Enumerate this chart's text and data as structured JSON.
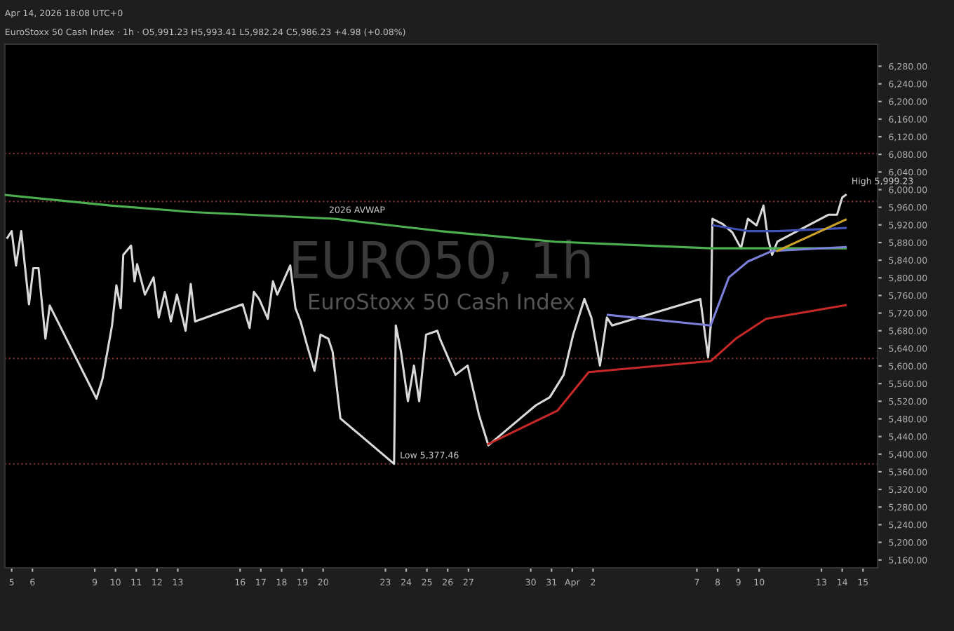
{
  "chart_data": {
    "type": "line",
    "title": "EURO50, 1h",
    "subtitle": "EuroStoxx 50 Cash Index",
    "annotations": [
      "Apr 14, 2026 18:08 UTC+0",
      "EuroStoxx 50 Cash Index · 1h · O5,991.23 H5,993.41 L5,982.24 C5,986.23 +4.98 (+0.08%)",
      {
        "text": "2026 AVWAP",
        "x": "2026-03-20T00:00",
        "y": 5934
      },
      {
        "text": "High 5,999.23",
        "x": "2026-04-14T04:00",
        "y": 5999.23
      },
      {
        "text": "Low 5,377.46",
        "x": "2026-03-23T10:00",
        "y": 5377.46
      }
    ],
    "series": [
      {
        "color": "#d9d9d9",
        "x": [
          "2026-03-04T19:00",
          "2026-03-05T00:00",
          "2026-03-05T05:00",
          "2026-03-05T11:00",
          "2026-03-05T20:00",
          "2026-03-06T01:00",
          "2026-03-06T07:00",
          "2026-03-06T15:00",
          "2026-03-06T20:00",
          "2026-03-09T02:00",
          "2026-03-09T09:00",
          "2026-03-09T20:00",
          "2026-03-10T01:00",
          "2026-03-10T06:00",
          "2026-03-10T09:00",
          "2026-03-10T18:00",
          "2026-03-10T22:00",
          "2026-03-11T01:00",
          "2026-03-11T10:00",
          "2026-03-11T20:00",
          "2026-03-12T02:00",
          "2026-03-12T09:00",
          "2026-03-12T16:00",
          "2026-03-12T23:00",
          "2026-03-13T09:00",
          "2026-03-13T15:00",
          "2026-03-13T20:00",
          "2026-03-16T03:00",
          "2026-03-16T11:00",
          "2026-03-16T16:00",
          "2026-03-16T22:00",
          "2026-03-17T08:00",
          "2026-03-17T14:00",
          "2026-03-17T19:00",
          "2026-03-18T10:00",
          "2026-03-18T16:00",
          "2026-03-18T22:00",
          "2026-03-19T05:00",
          "2026-03-19T14:00",
          "2026-03-19T21:00",
          "2026-03-20T06:00",
          "2026-03-20T11:00",
          "2026-03-20T20:00",
          "2026-03-23T10:00",
          "2026-03-23T12:00",
          "2026-03-23T18:00",
          "2026-03-24T02:00",
          "2026-03-24T09:00",
          "2026-03-24T15:00",
          "2026-03-24T23:00",
          "2026-03-25T12:00",
          "2026-03-25T15:00",
          "2026-03-26T09:00",
          "2026-03-26T23:00",
          "2026-03-27T12:00",
          "2026-03-27T23:00",
          "2026-03-30T06:00",
          "2026-03-30T22:00",
          "2026-03-31T14:00",
          "2026-04-01T01:00",
          "2026-04-01T14:00",
          "2026-04-01T22:00",
          "2026-04-02T08:00",
          "2026-04-02T16:00",
          "2026-04-02T22:00",
          "2026-04-07T04:00",
          "2026-04-07T13:00",
          "2026-04-07T16:00",
          "2026-04-07T18:00",
          "2026-04-08T06:00",
          "2026-04-08T17:00",
          "2026-04-09T03:00",
          "2026-04-09T11:00",
          "2026-04-09T21:00",
          "2026-04-10T05:00",
          "2026-04-10T10:00",
          "2026-04-10T15:00",
          "2026-04-10T21:00",
          "2026-04-13T08:00",
          "2026-04-13T18:00",
          "2026-04-14T00:00",
          "2026-04-14T04:00"
        ],
        "values": [
          5891,
          5906,
          5828,
          5906,
          5740,
          5822,
          5822,
          5662,
          5737,
          5526,
          5571,
          5692,
          5783,
          5731,
          5852,
          5873,
          5792,
          5831,
          5762,
          5801,
          5710,
          5768,
          5701,
          5762,
          5680,
          5786,
          5701,
          5740,
          5686,
          5768,
          5752,
          5707,
          5792,
          5762,
          5828,
          5731,
          5701,
          5650,
          5589,
          5671,
          5662,
          5632,
          5481,
          5378,
          5692,
          5632,
          5520,
          5601,
          5520,
          5671,
          5680,
          5662,
          5580,
          5601,
          5490,
          5420,
          5511,
          5529,
          5580,
          5671,
          5752,
          5710,
          5601,
          5710,
          5692,
          5752,
          5620,
          5692,
          5934,
          5922,
          5903,
          5867,
          5934,
          5919,
          5964,
          5891,
          5852,
          5882,
          5943,
          5943,
          5982,
          5988
        ]
      },
      {
        "color": "#4caf50",
        "x": [
          "2026-03-04T16:00",
          "2026-03-09T18:00",
          "2026-03-13T17:00",
          "2026-03-20T13:00",
          "2026-03-25T15:00",
          "2026-03-31T04:00",
          "2026-04-07T16:00",
          "2026-04-10T07:00",
          "2026-04-14T04:00"
        ],
        "values": [
          5988,
          5964,
          5949,
          5934,
          5906,
          5882,
          5867,
          5867,
          5867
        ]
      },
      {
        "color": "#7b7fd9",
        "x": [
          "2026-04-02T17:00",
          "2026-04-07T16:00",
          "2026-04-08T13:00",
          "2026-04-09T11:00",
          "2026-04-10T15:00",
          "2026-04-14T04:00"
        ],
        "values": [
          5716,
          5692,
          5801,
          5837,
          5861,
          5870
        ]
      },
      {
        "color": "#c62828",
        "x": [
          "2026-03-27T23:00",
          "2026-03-31T07:00",
          "2026-04-01T19:00",
          "2026-04-07T16:00",
          "2026-04-08T21:00",
          "2026-04-10T08:00",
          "2026-04-14T04:00"
        ],
        "values": [
          5423,
          5499,
          5586,
          5611,
          5662,
          5707,
          5738
        ]
      },
      {
        "color": "#3f51b5",
        "x": [
          "2026-04-07T19:00",
          "2026-04-09T11:00",
          "2026-04-10T21:00",
          "2026-04-14T04:00"
        ],
        "values": [
          5919,
          5906,
          5906,
          5913
        ]
      },
      {
        "color": "#c9a227",
        "x": [
          "2026-04-10T21:00",
          "2026-04-14T04:00"
        ],
        "values": [
          5861,
          5932
        ]
      }
    ],
    "ref_lines": [
      {
        "axis": "y",
        "value": 6082,
        "color": "#7a3333",
        "line_style": "dotted"
      },
      {
        "axis": "y",
        "value": 5378,
        "color": "#7a3333",
        "line_style": "dotted"
      },
      {
        "axis": "y",
        "value": 5973,
        "color": "#7a3333",
        "line_style": "dotted"
      },
      {
        "axis": "y",
        "value": 5617,
        "color": "#7a3333",
        "line_style": "dotted"
      }
    ],
    "xlim": [
      "2026-03-04T16:00",
      "2026-04-15T17:00"
    ],
    "xticks": [
      {
        "value": "2026-03-05",
        "label": "5"
      },
      {
        "value": "2026-03-06",
        "label": "6"
      },
      {
        "value": "2026-03-09",
        "label": "9"
      },
      {
        "value": "2026-03-10",
        "label": "10"
      },
      {
        "value": "2026-03-11",
        "label": "11"
      },
      {
        "value": "2026-03-12",
        "label": "12"
      },
      {
        "value": "2026-03-13",
        "label": "13"
      },
      {
        "value": "2026-03-16",
        "label": "16"
      },
      {
        "value": "2026-03-17",
        "label": "17"
      },
      {
        "value": "2026-03-18",
        "label": "18"
      },
      {
        "value": "2026-03-19",
        "label": "19"
      },
      {
        "value": "2026-03-20",
        "label": "20"
      },
      {
        "value": "2026-03-23",
        "label": "23"
      },
      {
        "value": "2026-03-24",
        "label": "24"
      },
      {
        "value": "2026-03-25",
        "label": "25"
      },
      {
        "value": "2026-03-26",
        "label": "26"
      },
      {
        "value": "2026-03-27",
        "label": "27"
      },
      {
        "value": "2026-03-30",
        "label": "30"
      },
      {
        "value": "2026-03-31",
        "label": "31"
      },
      {
        "value": "2026-04-01",
        "label": "Apr"
      },
      {
        "value": "2026-04-02",
        "label": "2"
      },
      {
        "value": "2026-04-07",
        "label": "7"
      },
      {
        "value": "2026-04-08",
        "label": "8"
      },
      {
        "value": "2026-04-09",
        "label": "9"
      },
      {
        "value": "2026-04-10",
        "label": "10"
      },
      {
        "value": "2026-04-13",
        "label": "13"
      },
      {
        "value": "2026-04-14",
        "label": "14"
      },
      {
        "value": "2026-04-15",
        "label": "15"
      }
    ],
    "ylim": [
      5142,
      6330
    ],
    "yticks": [
      {
        "value": 5160,
        "label": "5,160.00"
      },
      {
        "value": 5200,
        "label": "5,200.00"
      },
      {
        "value": 5240,
        "label": "5,240.00"
      },
      {
        "value": 5280,
        "label": "5,280.00"
      },
      {
        "value": 5320,
        "label": "5,320.00"
      },
      {
        "value": 5360,
        "label": "5,360.00"
      },
      {
        "value": 5400,
        "label": "5,400.00"
      },
      {
        "value": 5440,
        "label": "5,440.00"
      },
      {
        "value": 5480,
        "label": "5,480.00"
      },
      {
        "value": 5520,
        "label": "5,520.00"
      },
      {
        "value": 5560,
        "label": "5,560.00"
      },
      {
        "value": 5600,
        "label": "5,600.00"
      },
      {
        "value": 5640,
        "label": "5,640.00"
      },
      {
        "value": 5680,
        "label": "5,680.00"
      },
      {
        "value": 5720,
        "label": "5,720.00"
      },
      {
        "value": 5760,
        "label": "5,760.00"
      },
      {
        "value": 5800,
        "label": "5,800.00"
      },
      {
        "value": 5840,
        "label": "5,840.00"
      },
      {
        "value": 5880,
        "label": "5,880.00"
      },
      {
        "value": 5920,
        "label": "5,920.00"
      },
      {
        "value": 5960,
        "label": "5,960.00"
      },
      {
        "value": 6000,
        "label": "6,000.00"
      },
      {
        "value": 6040,
        "label": "6,040.00"
      },
      {
        "value": 6080,
        "label": "6,080.00"
      },
      {
        "value": 6120,
        "label": "6,120.00"
      },
      {
        "value": 6160,
        "label": "6,160.00"
      },
      {
        "value": 6200,
        "label": "6,200.00"
      },
      {
        "value": 6240,
        "label": "6,240.00"
      },
      {
        "value": 6280,
        "label": "6,280.00"
      }
    ]
  }
}
